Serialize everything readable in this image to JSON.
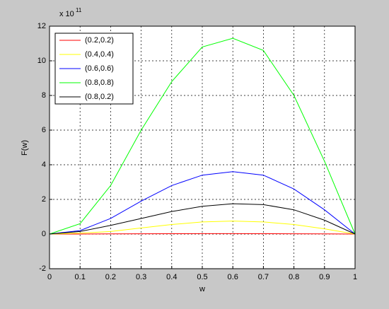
{
  "chart_data": {
    "type": "line",
    "y_scale_label": {
      "base": "x 10",
      "exponent": "11"
    },
    "xlabel": "w",
    "ylabel": "F(w)",
    "x": [
      0,
      0.1,
      0.2,
      0.3,
      0.4,
      0.5,
      0.6,
      0.7,
      0.8,
      0.9,
      1
    ],
    "series": [
      {
        "name": "(0.2,0.2)",
        "color": "#ff0000",
        "values": [
          0,
          0.002,
          0.008,
          0.015,
          0.02,
          0.023,
          0.024,
          0.022,
          0.017,
          0.009,
          0
        ]
      },
      {
        "name": "(0.4,0.4)",
        "color": "#ffff00",
        "values": [
          0,
          0.05,
          0.15,
          0.35,
          0.55,
          0.7,
          0.75,
          0.7,
          0.55,
          0.3,
          0
        ]
      },
      {
        "name": "(0.6,0.6)",
        "color": "#0000ff",
        "values": [
          0,
          0.2,
          0.9,
          1.9,
          2.8,
          3.4,
          3.6,
          3.4,
          2.6,
          1.4,
          0
        ]
      },
      {
        "name": "(0.8,0.8)",
        "color": "#00ff00",
        "values": [
          0,
          0.6,
          2.8,
          6.0,
          8.8,
          10.8,
          11.3,
          10.6,
          8.0,
          4.2,
          0
        ]
      },
      {
        "name": "(0.8,0.2)",
        "color": "#000000",
        "values": [
          0,
          0.15,
          0.5,
          0.9,
          1.3,
          1.6,
          1.75,
          1.7,
          1.4,
          0.8,
          0
        ]
      }
    ],
    "xlim": [
      0,
      1
    ],
    "xticks": [
      0,
      0.1,
      0.2,
      0.3,
      0.4,
      0.5,
      0.6,
      0.7,
      0.8,
      0.9,
      1
    ],
    "ylim": [
      -2,
      12
    ],
    "yticks": [
      -2,
      0,
      2,
      4,
      6,
      8,
      10,
      12
    ],
    "grid": true,
    "legend": "upper left"
  }
}
